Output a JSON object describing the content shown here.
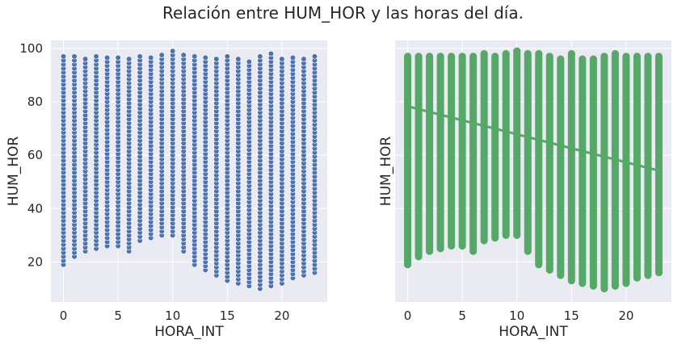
{
  "figure": {
    "title": "Relación entre HUM_HOR y las horas del día."
  },
  "colors": {
    "background": "#eaeaf2",
    "grid": "#ffffff",
    "scatter": "#4c72b0",
    "scatter_edge": "#ffffff",
    "regplot": "#55a868"
  },
  "chart_data": [
    {
      "type": "scatter",
      "xlabel": "HORA_INT",
      "ylabel": "HUM_HOR",
      "xlim": [
        -1.15,
        24.15
      ],
      "ylim": [
        5,
        103
      ],
      "xticks": [
        0,
        5,
        10,
        15,
        20
      ],
      "yticks": [
        20,
        40,
        60,
        80,
        100
      ],
      "grid": true,
      "series": [
        {
          "x": [
            0,
            1,
            2,
            3,
            4,
            5,
            6,
            7,
            8,
            9,
            10,
            11,
            12,
            13,
            14,
            15,
            16,
            17,
            18,
            19,
            20,
            21,
            22,
            23
          ],
          "ymin": [
            19,
            22,
            24,
            25,
            26,
            26,
            24,
            28,
            29,
            30,
            30,
            24,
            19,
            17,
            15,
            13,
            12,
            11,
            10,
            11,
            12,
            14,
            15,
            16
          ],
          "ymax": [
            97,
            97,
            97,
            97,
            97,
            97,
            97,
            98,
            97,
            98,
            99,
            98,
            98,
            97,
            96,
            98,
            96,
            96,
            97,
            98,
            97,
            97,
            97,
            97
          ]
        }
      ]
    },
    {
      "type": "scatter",
      "xlabel": "HORA_INT",
      "ylabel": "HUM_HOR",
      "xlim": [
        -1.15,
        24.15
      ],
      "ylim": [
        5,
        103
      ],
      "xticks": [
        0,
        5,
        10,
        15,
        20
      ],
      "yticks": [
        20,
        40,
        60,
        80,
        100
      ],
      "shared_y": true,
      "grid": true,
      "series": [
        {
          "x": [
            0,
            1,
            2,
            3,
            4,
            5,
            6,
            7,
            8,
            9,
            10,
            11,
            12,
            13,
            14,
            15,
            16,
            17,
            18,
            19,
            20,
            21,
            22,
            23
          ],
          "ymin": [
            19,
            22,
            24,
            25,
            26,
            26,
            24,
            28,
            29,
            30,
            30,
            24,
            19,
            17,
            15,
            13,
            12,
            11,
            10,
            11,
            12,
            14,
            15,
            16
          ],
          "ymax": [
            97,
            97,
            97,
            97,
            97,
            97,
            97,
            98,
            97,
            98,
            99,
            98,
            98,
            97,
            96,
            98,
            96,
            96,
            97,
            98,
            97,
            97,
            97,
            97
          ]
        }
      ],
      "regression_line": {
        "x": [
          0,
          23
        ],
        "y": [
          78.3,
          54.2
        ]
      }
    }
  ]
}
